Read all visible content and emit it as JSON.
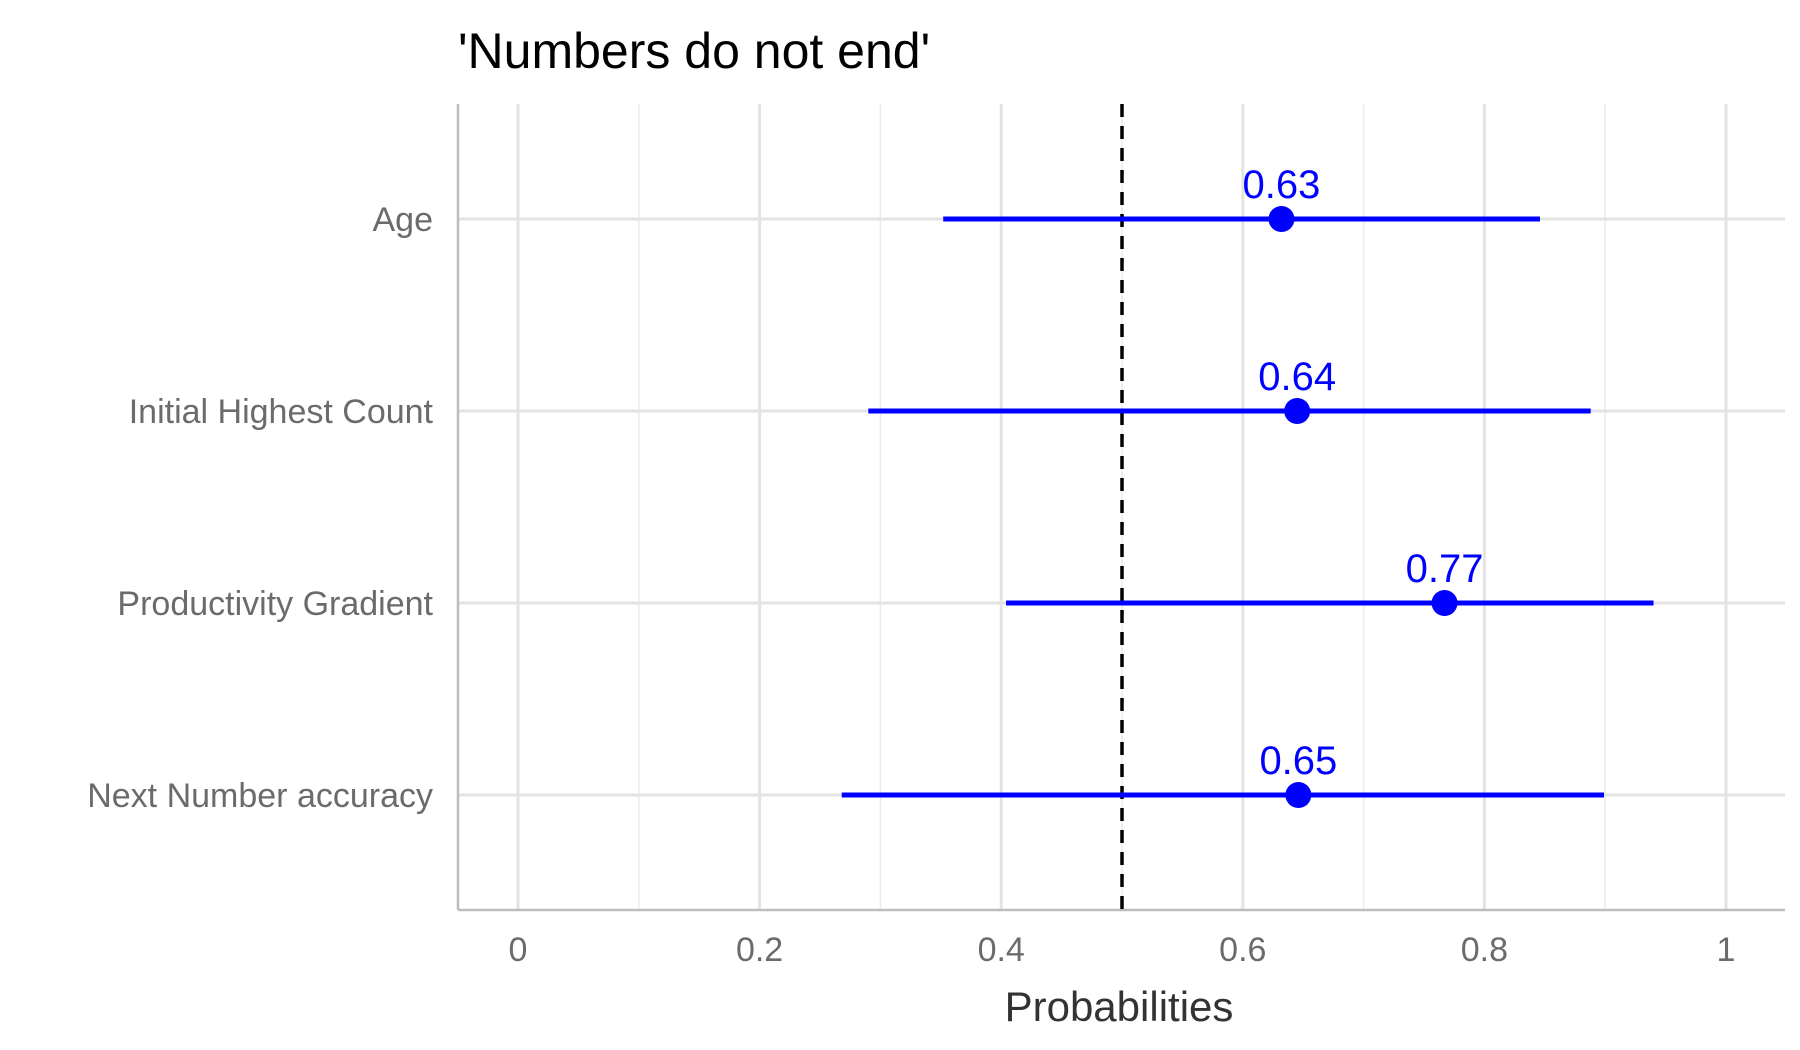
{
  "chart_data": {
    "type": "dot-interval",
    "title": "'Numbers do not end'",
    "xlabel": "Probabilities",
    "ylabel": "",
    "xlim": [
      -0.05,
      1.05
    ],
    "x_ticks": [
      0,
      0.2,
      0.4,
      0.6,
      0.8,
      1
    ],
    "x_tick_labels": [
      "0",
      "0.2",
      "0.4",
      "0.6",
      "0.8",
      "1"
    ],
    "x_minor_ticks": [
      0.1,
      0.3,
      0.5,
      0.7,
      0.9
    ],
    "grid": true,
    "reference_line": {
      "x": 0.5,
      "style": "dashed",
      "color": "#000000"
    },
    "color": "#0000ff",
    "categories": [
      "Age",
      "Initial Highest Count",
      "Productivity Gradient",
      "Next Number accuracy"
    ],
    "points": [
      {
        "category": "Age",
        "estimate": 0.632,
        "lower": 0.352,
        "upper": 0.846,
        "label": "0.63"
      },
      {
        "category": "Initial Highest Count",
        "estimate": 0.645,
        "lower": 0.29,
        "upper": 0.888,
        "label": "0.64"
      },
      {
        "category": "Productivity Gradient",
        "estimate": 0.767,
        "lower": 0.404,
        "upper": 0.94,
        "label": "0.77"
      },
      {
        "category": "Next Number accuracy",
        "estimate": 0.646,
        "lower": 0.268,
        "upper": 0.899,
        "label": "0.65"
      }
    ]
  }
}
